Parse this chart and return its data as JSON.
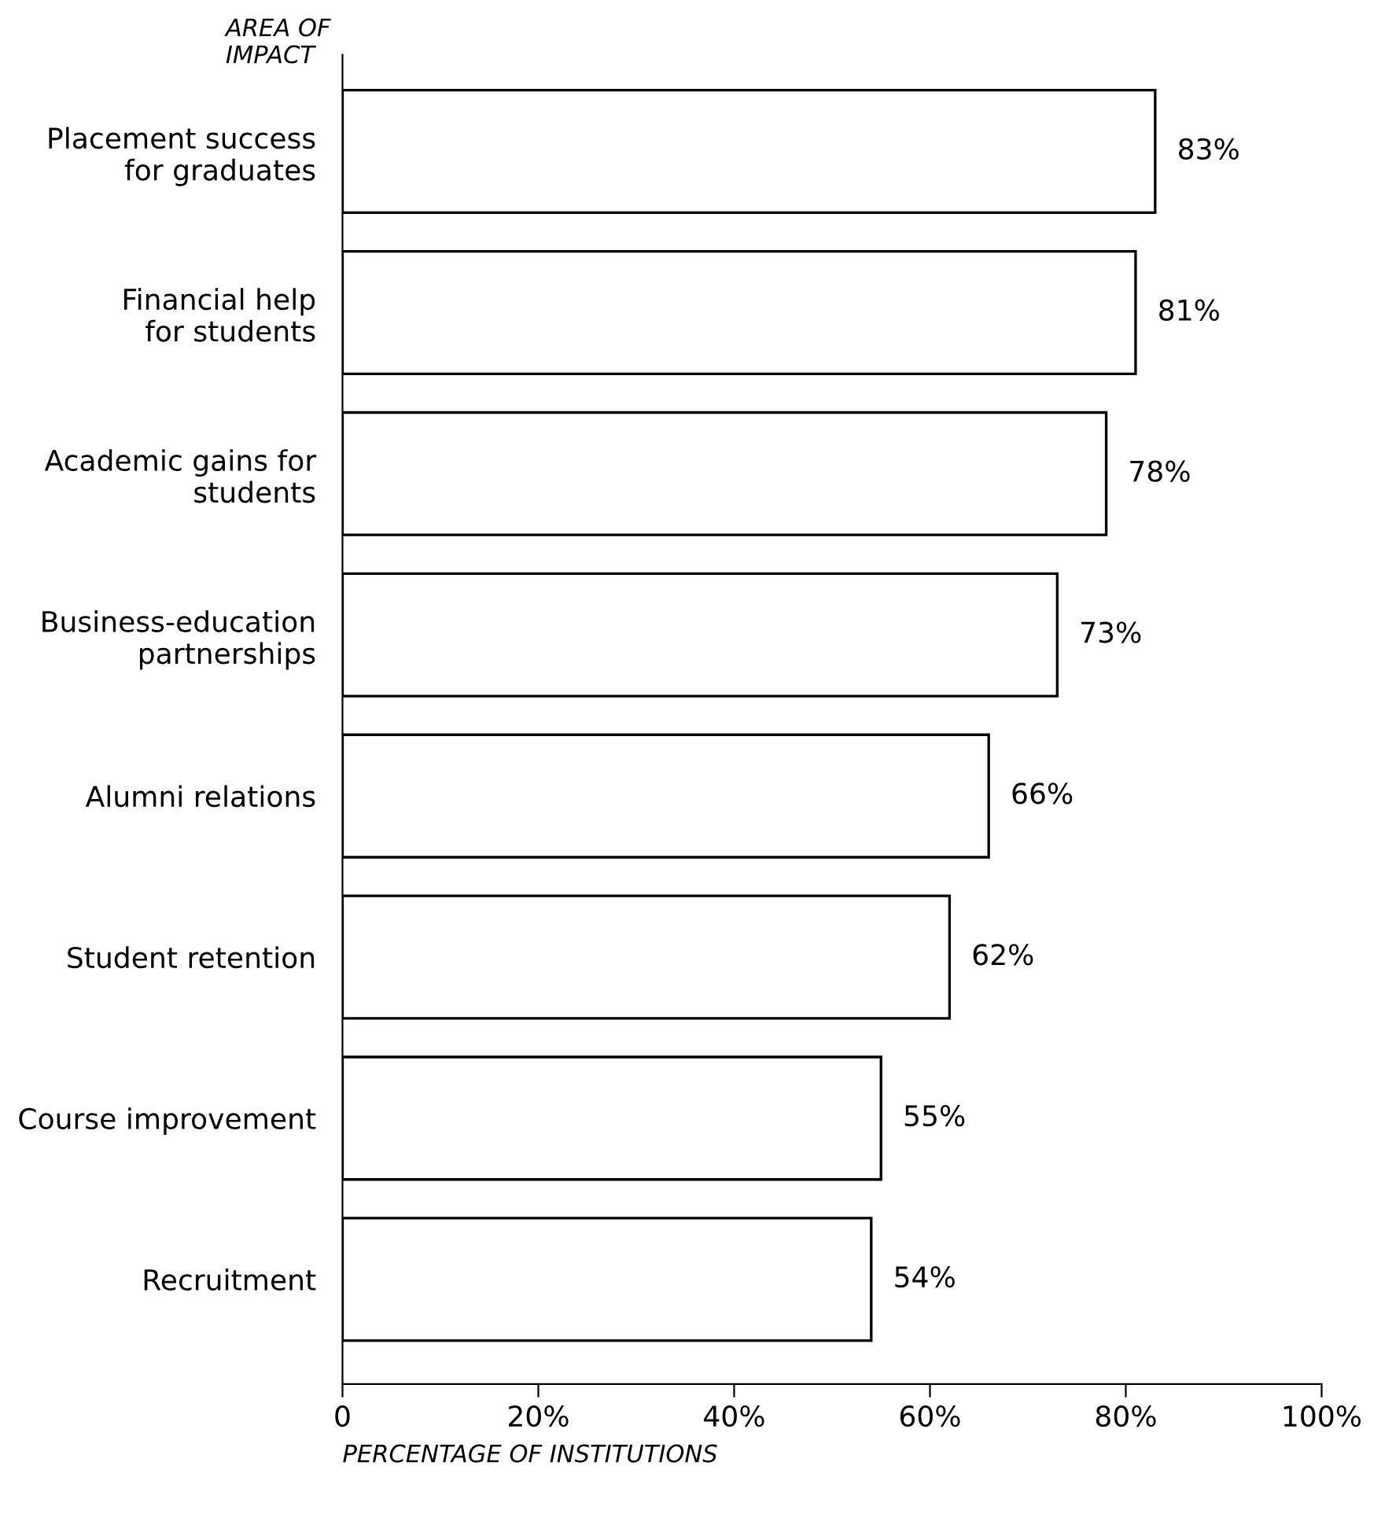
{
  "chart_data": {
    "type": "bar",
    "orientation": "horizontal",
    "ylabel": "AREA OF\nIMPACT",
    "xlabel": "PERCENTAGE OF INSTITUTIONS",
    "categories": [
      "Placement success\nfor graduates",
      "Financial help\nfor students",
      "Academic gains for\nstudents",
      "Business-education\npartnerships",
      "Alumni relations",
      "Student retention",
      "Course improvement",
      "Recruitment"
    ],
    "values": [
      83,
      81,
      78,
      73,
      66,
      62,
      55,
      54
    ],
    "value_labels": [
      "83%",
      "81%",
      "78%",
      "73%",
      "66%",
      "62%",
      "55%",
      "54%"
    ],
    "color": "#ffffff",
    "xlim": [
      0,
      100
    ],
    "xticks": [
      0,
      {
        "value": 20,
        "label": "20%"
      },
      {
        "value": 40,
        "label": "40%"
      },
      {
        "value": 60,
        "label": "60%"
      },
      {
        "value": 80,
        "label": "80%"
      },
      {
        "value": 100,
        "label": "100%"
      }
    ],
    "grid": false,
    "legend": false
  }
}
